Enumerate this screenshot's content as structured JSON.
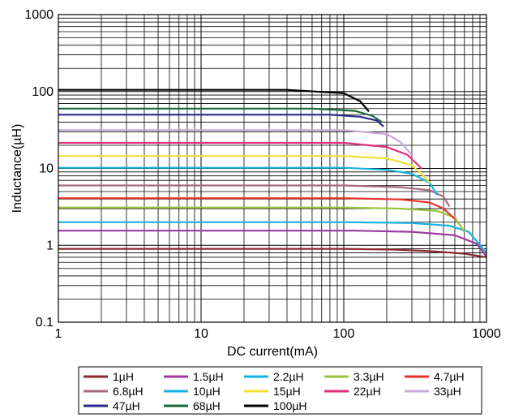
{
  "chart_data": {
    "type": "line",
    "title": "",
    "xlabel": "DC current(mA)",
    "ylabel": "Inductance(µH)",
    "xscale": "log",
    "yscale": "log",
    "xlim": [
      1,
      1000
    ],
    "ylim": [
      0.1,
      1000
    ],
    "x_ticks": [
      "1",
      "10",
      "100",
      "1000"
    ],
    "y_ticks": [
      "0.1",
      "1",
      "10",
      "100",
      "1000"
    ],
    "grid": true,
    "legend_position": "bottom",
    "series": [
      {
        "name": "1µH",
        "color": "#8b2a2a",
        "x": [
          1,
          100,
          220,
          400,
          700,
          1000
        ],
        "y": [
          0.9,
          0.9,
          0.88,
          0.84,
          0.78,
          0.7
        ]
      },
      {
        "name": "1.5µH",
        "color": "#9b3a9e",
        "x": [
          1,
          120,
          300,
          600,
          850,
          1000
        ],
        "y": [
          1.55,
          1.55,
          1.5,
          1.35,
          1.05,
          0.72
        ]
      },
      {
        "name": "2.2µH",
        "color": "#18b2e0",
        "x": [
          1,
          100,
          300,
          550,
          750,
          1000
        ],
        "y": [
          2.0,
          2.0,
          1.95,
          1.8,
          1.5,
          0.8
        ]
      },
      {
        "name": "3.3µH",
        "color": "#9bc43c",
        "x": [
          1,
          100,
          250,
          450,
          600,
          700
        ],
        "y": [
          3.1,
          3.1,
          3.0,
          2.8,
          2.3,
          1.5
        ]
      },
      {
        "name": "4.7µH",
        "color": "#e8302a",
        "x": [
          1,
          100,
          250,
          400,
          500,
          600
        ],
        "y": [
          4.1,
          4.1,
          3.95,
          3.6,
          3.0,
          2.2
        ]
      },
      {
        "name": "6.8µH",
        "color": "#a86a7a",
        "x": [
          1,
          100,
          250,
          400,
          500,
          550
        ],
        "y": [
          6.0,
          6.0,
          5.7,
          5.2,
          4.3,
          3.2
        ]
      },
      {
        "name": "10µH",
        "color": "#18b2e0",
        "x": [
          1,
          100,
          200,
          300,
          400,
          450
        ],
        "y": [
          10.2,
          10.2,
          9.6,
          8.5,
          6.5,
          4.5
        ]
      },
      {
        "name": "15µH",
        "color": "#f0e030",
        "x": [
          1,
          100,
          200,
          300,
          350,
          400
        ],
        "y": [
          14.5,
          14.5,
          13.5,
          11.0,
          8.5,
          6.5
        ]
      },
      {
        "name": "22µH",
        "color": "#e0307a",
        "x": [
          1,
          100,
          200,
          280,
          350
        ],
        "y": [
          21.5,
          21.5,
          19.0,
          15.0,
          10.0
        ]
      },
      {
        "name": "33µH",
        "color": "#c8a8d8",
        "x": [
          1,
          100,
          200,
          250,
          300
        ],
        "y": [
          31.5,
          31.5,
          28.0,
          22.0,
          15.0
        ]
      },
      {
        "name": "47µH",
        "color": "#2a2a8e",
        "x": [
          1,
          80,
          130,
          170,
          190
        ],
        "y": [
          50.0,
          50.0,
          47.0,
          42.0,
          35.0
        ]
      },
      {
        "name": "68µH",
        "color": "#1a6a3a",
        "x": [
          1,
          60,
          120,
          160,
          185
        ],
        "y": [
          60.0,
          60.0,
          56.0,
          48.0,
          40.0
        ]
      },
      {
        "name": "100µH",
        "color": "#000000",
        "x": [
          1,
          40,
          100,
          130,
          150
        ],
        "y": [
          105.0,
          105.0,
          95.0,
          75.0,
          55.0
        ]
      }
    ]
  }
}
